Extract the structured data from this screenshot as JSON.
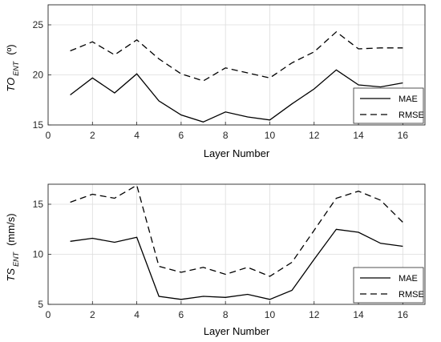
{
  "chart_data": [
    {
      "type": "line",
      "xlabel": "Layer Number",
      "ylabel": {
        "main": "TO",
        "sub": "ENT",
        "unit": "(º)"
      },
      "xlim": [
        0,
        17
      ],
      "ylim": [
        15,
        27
      ],
      "xticks": [
        0,
        2,
        4,
        6,
        8,
        10,
        12,
        14,
        16
      ],
      "yticks": [
        15,
        20,
        25
      ],
      "grid": true,
      "legend_position": "bottom-right",
      "x": [
        1,
        2,
        3,
        4,
        5,
        6,
        7,
        8,
        9,
        10,
        11,
        12,
        13,
        14,
        15,
        16
      ],
      "series": [
        {
          "name": "MAE",
          "style": "solid",
          "values": [
            18.0,
            19.7,
            18.2,
            20.1,
            17.4,
            16.0,
            15.3,
            16.3,
            15.8,
            15.5,
            17.1,
            18.6,
            20.5,
            19.0,
            18.8,
            19.2
          ]
        },
        {
          "name": "RMSE",
          "style": "dashed",
          "values": [
            22.4,
            23.3,
            22.0,
            23.5,
            21.6,
            20.1,
            19.4,
            20.7,
            20.2,
            19.7,
            21.2,
            22.3,
            24.3,
            22.6,
            22.7,
            22.7
          ]
        }
      ]
    },
    {
      "type": "line",
      "xlabel": "Layer Number",
      "ylabel": {
        "main": "TS",
        "sub": "ENT",
        "unit": "(mm/s)"
      },
      "xlim": [
        0,
        17
      ],
      "ylim": [
        5,
        17
      ],
      "xticks": [
        0,
        2,
        4,
        6,
        8,
        10,
        12,
        14,
        16
      ],
      "yticks": [
        5,
        10,
        15
      ],
      "grid": true,
      "legend_position": "bottom-right",
      "x": [
        1,
        2,
        3,
        4,
        5,
        6,
        7,
        8,
        9,
        10,
        11,
        12,
        13,
        14,
        15,
        16
      ],
      "series": [
        {
          "name": "MAE",
          "style": "solid",
          "values": [
            11.3,
            11.6,
            11.2,
            11.7,
            5.8,
            5.5,
            5.8,
            5.7,
            6.0,
            5.5,
            6.4,
            9.5,
            12.5,
            12.2,
            11.1,
            10.8
          ]
        },
        {
          "name": "RMSE",
          "style": "dashed",
          "values": [
            15.2,
            16.0,
            15.6,
            16.9,
            8.8,
            8.2,
            8.7,
            8.0,
            8.7,
            7.8,
            9.2,
            12.4,
            15.6,
            16.3,
            15.4,
            13.2
          ]
        }
      ]
    }
  ]
}
